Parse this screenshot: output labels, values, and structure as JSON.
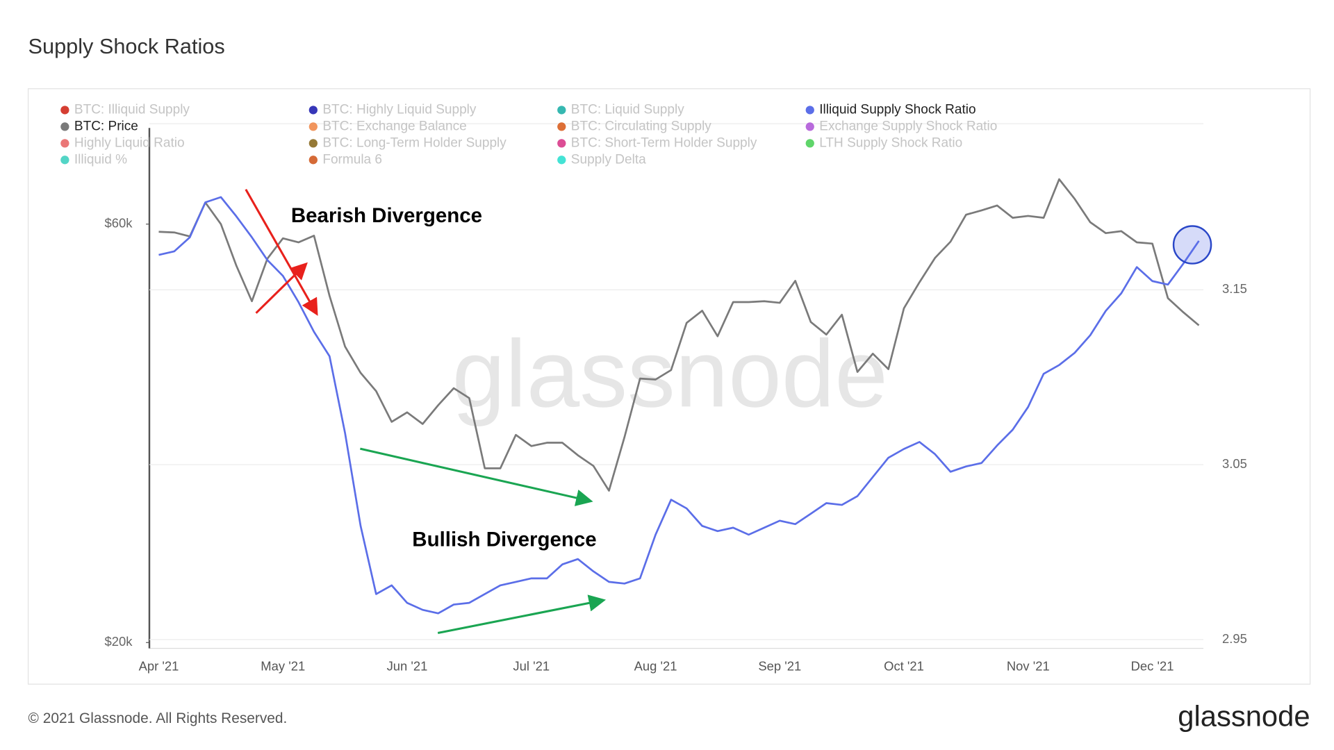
{
  "chart_data": {
    "type": "line",
    "title": "Supply Shock Ratios",
    "watermark": "glassnode",
    "footer": "© 2021 Glassnode. All Rights Reserved.",
    "logo": "glassnode",
    "annotations": [
      "Bearish Divergence",
      "Bullish Divergence"
    ],
    "categories": [
      "Apr '21",
      null,
      null,
      null,
      null,
      null,
      null,
      null,
      "May '21",
      null,
      null,
      null,
      null,
      null,
      null,
      null,
      "Jun '21",
      null,
      null,
      null,
      null,
      null,
      null,
      null,
      "Jul '21",
      null,
      null,
      null,
      null,
      null,
      null,
      null,
      "Aug '21",
      null,
      null,
      null,
      null,
      null,
      null,
      null,
      "Sep '21",
      null,
      null,
      null,
      null,
      null,
      null,
      null,
      "Oct '21",
      null,
      null,
      null,
      null,
      null,
      null,
      null,
      "Nov '21",
      null,
      null,
      null,
      null,
      null,
      null,
      null,
      "Dec '21",
      null,
      null,
      null
    ],
    "log_y": true,
    "ylim": [
      19700,
      78100
    ],
    "yticks": [
      {
        "value": 20000,
        "label": "$20k"
      },
      {
        "value": 60000,
        "label": "$60k"
      }
    ],
    "y2lim": [
      2.945,
      3.245
    ],
    "y2ticks": [
      2.95,
      3.05,
      3.15
    ],
    "grid": true,
    "series": [
      {
        "name": "BTC: Illiquid Supply",
        "color": "#d0291c",
        "hidden": true
      },
      {
        "name": "BTC: Highly Liquid Supply",
        "color": "#2020b0",
        "hidden": true
      },
      {
        "name": "BTC: Liquid Supply",
        "color": "#20b0a8",
        "hidden": true
      },
      {
        "name": "Illiquid Supply Shock Ratio",
        "color": "#5b6ee8",
        "axis": "y2",
        "values": [
          3.17,
          3.172,
          3.18,
          3.2,
          3.203,
          3.192,
          3.18,
          3.167,
          3.158,
          3.143,
          3.126,
          3.112,
          3.068,
          3.015,
          2.976,
          2.981,
          2.971,
          2.967,
          2.965,
          2.97,
          2.971,
          2.976,
          2.981,
          2.983,
          2.985,
          2.985,
          2.993,
          2.996,
          2.989,
          2.983,
          2.982,
          2.985,
          3.01,
          3.03,
          3.025,
          3.015,
          3.012,
          3.014,
          3.01,
          3.014,
          3.018,
          3.016,
          3.022,
          3.028,
          3.027,
          3.032,
          3.043,
          3.054,
          3.059,
          3.063,
          3.056,
          3.046,
          3.049,
          3.051,
          3.061,
          3.07,
          3.083,
          3.102,
          3.107,
          3.114,
          3.124,
          3.138,
          3.148,
          3.163,
          3.155,
          3.153,
          3.165,
          3.178
        ]
      },
      {
        "name": "BTC: Price",
        "color": "#7a7a7a",
        "axis": "y",
        "values": [
          58800,
          58700,
          58100,
          63500,
          60000,
          53800,
          49000,
          54800,
          57800,
          57200,
          58200,
          49700,
          43500,
          40600,
          38700,
          35700,
          36600,
          35500,
          37300,
          39000,
          38000,
          31600,
          31600,
          34500,
          33500,
          33800,
          33800,
          32700,
          31800,
          29800,
          34300,
          40000,
          39900,
          40900,
          46300,
          47800,
          44700,
          48900,
          48900,
          49000,
          48800,
          51700,
          46400,
          44900,
          47300,
          40700,
          42700,
          41000,
          48100,
          51500,
          54900,
          57300,
          61500,
          62200,
          63000,
          61000,
          61300,
          61000,
          67500,
          64100,
          60300,
          58600,
          58900,
          57200,
          57000,
          49400,
          47600,
          46000
        ]
      },
      {
        "name": "BTC: Exchange Balance",
        "color": "#f08a4b",
        "hidden": true
      },
      {
        "name": "BTC: Circulating Supply",
        "color": "#d95f20",
        "hidden": true
      },
      {
        "name": "Exchange Supply Shock Ratio",
        "color": "#b05ad8",
        "hidden": true
      },
      {
        "name": "Highly Liquid Ratio",
        "color": "#e86868",
        "hidden": true
      },
      {
        "name": "BTC: Long-Term Holder Supply",
        "color": "#8a6a20",
        "hidden": true
      },
      {
        "name": "BTC: Short-Term Holder Supply",
        "color": "#d83a8a",
        "hidden": true
      },
      {
        "name": "LTH Supply Shock Ratio",
        "color": "#4ed05a",
        "hidden": true
      },
      {
        "name": "Illiquid %",
        "color": "#40d0c0",
        "hidden": true
      },
      {
        "name": "Formula 6",
        "color": "#d05a20",
        "hidden": true
      },
      {
        "name": "Supply Delta",
        "color": "#30e0d0",
        "hidden": true
      }
    ]
  }
}
